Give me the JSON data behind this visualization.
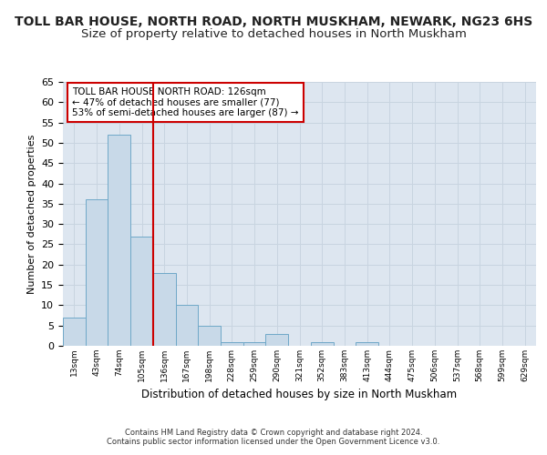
{
  "title": "TOLL BAR HOUSE, NORTH ROAD, NORTH MUSKHAM, NEWARK, NG23 6HS",
  "subtitle": "Size of property relative to detached houses in North Muskham",
  "xlabel": "Distribution of detached houses by size in North Muskham",
  "ylabel": "Number of detached properties",
  "bar_color": "#c8d9e8",
  "bar_edge_color": "#6fa8c8",
  "vline_color": "#cc0000",
  "annotation_text": "TOLL BAR HOUSE NORTH ROAD: 126sqm\n← 47% of detached houses are smaller (77)\n53% of semi-detached houses are larger (87) →",
  "annotation_box_edge": "#cc0000",
  "bins": [
    "13sqm",
    "43sqm",
    "74sqm",
    "105sqm",
    "136sqm",
    "167sqm",
    "198sqm",
    "228sqm",
    "259sqm",
    "290sqm",
    "321sqm",
    "352sqm",
    "383sqm",
    "413sqm",
    "444sqm",
    "475sqm",
    "506sqm",
    "537sqm",
    "568sqm",
    "599sqm",
    "629sqm"
  ],
  "values": [
    7,
    36,
    52,
    27,
    18,
    10,
    5,
    1,
    1,
    3,
    0,
    1,
    0,
    1,
    0,
    0,
    0,
    0,
    0,
    0,
    0
  ],
  "ylim": [
    0,
    65
  ],
  "yticks": [
    0,
    5,
    10,
    15,
    20,
    25,
    30,
    35,
    40,
    45,
    50,
    55,
    60,
    65
  ],
  "grid_color": "#c8d4e0",
  "background_color": "#dde6f0",
  "footer_line1": "Contains HM Land Registry data © Crown copyright and database right 2024.",
  "footer_line2": "Contains public sector information licensed under the Open Government Licence v3.0.",
  "title_fontsize": 10,
  "subtitle_fontsize": 9.5
}
